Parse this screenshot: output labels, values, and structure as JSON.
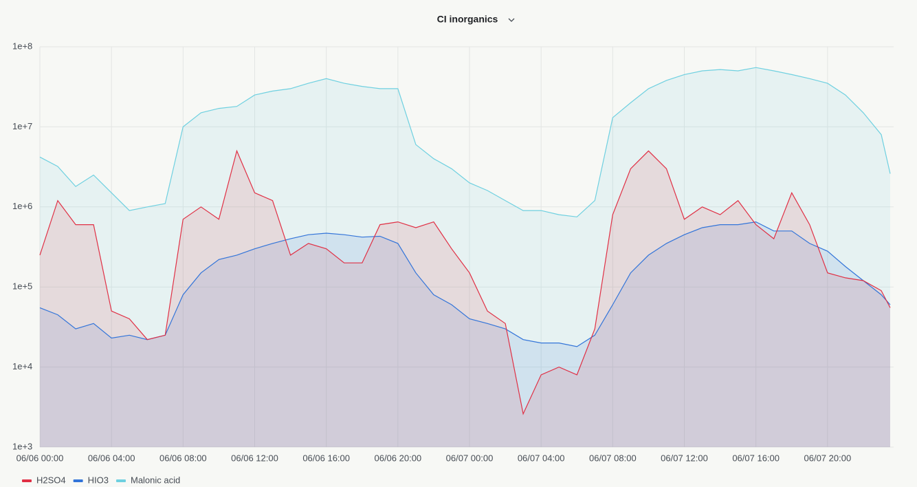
{
  "chart_data": {
    "type": "area",
    "title": "CI inorganics",
    "x": [
      0,
      1,
      2,
      3,
      4,
      5,
      6,
      7,
      8,
      9,
      10,
      11,
      12,
      13,
      14,
      15,
      16,
      17,
      18,
      19,
      20,
      21,
      22,
      23,
      24,
      25,
      26,
      27,
      28,
      29,
      30,
      31,
      32,
      33,
      34,
      35,
      36,
      37,
      38,
      39,
      40,
      41,
      42,
      43,
      44,
      45,
      46,
      47,
      47.5
    ],
    "xlim": [
      0,
      47.5
    ],
    "xticks": [
      {
        "value": 0,
        "label": "06/06 00:00"
      },
      {
        "value": 4,
        "label": "06/06 04:00"
      },
      {
        "value": 8,
        "label": "06/06 08:00"
      },
      {
        "value": 12,
        "label": "06/06 12:00"
      },
      {
        "value": 16,
        "label": "06/06 16:00"
      },
      {
        "value": 20,
        "label": "06/06 20:00"
      },
      {
        "value": 24,
        "label": "06/07 00:00"
      },
      {
        "value": 28,
        "label": "06/07 04:00"
      },
      {
        "value": 32,
        "label": "06/07 08:00"
      },
      {
        "value": 36,
        "label": "06/07 12:00"
      },
      {
        "value": 40,
        "label": "06/07 16:00"
      },
      {
        "value": 44,
        "label": "06/07 20:00"
      }
    ],
    "ylim": [
      1000,
      100000000
    ],
    "yticks": [
      {
        "value": 1000,
        "label": "1e+3"
      },
      {
        "value": 10000,
        "label": "1e+4"
      },
      {
        "value": 100000,
        "label": "1e+5"
      },
      {
        "value": 1000000,
        "label": "1e+6"
      },
      {
        "value": 10000000,
        "label": "1e+7"
      },
      {
        "value": 100000000,
        "label": "1e+8"
      }
    ],
    "log_scale": true,
    "grid": true,
    "legend_position": "bottom-left",
    "series": [
      {
        "name": "H2SO4",
        "color": "#e02f44",
        "values": [
          250000,
          1200000,
          600000,
          600000,
          50000,
          40000,
          22000,
          25000,
          700000,
          1000000,
          700000,
          5000000,
          1500000,
          1200000,
          250000,
          350000,
          300000,
          200000,
          200000,
          600000,
          650000,
          550000,
          650000,
          300000,
          150000,
          50000,
          35000,
          2600,
          8000,
          10000,
          8000,
          30000,
          800000,
          3000000,
          5000000,
          3000000,
          700000,
          1000000,
          800000,
          1200000,
          600000,
          400000,
          1500000,
          600000,
          150000,
          130000,
          120000,
          90000,
          55000
        ]
      },
      {
        "name": "HIO3",
        "color": "#3274d9",
        "values": [
          55000,
          45000,
          30000,
          35000,
          23000,
          25000,
          22000,
          25000,
          80000,
          150000,
          220000,
          250000,
          300000,
          350000,
          400000,
          450000,
          470000,
          450000,
          420000,
          430000,
          350000,
          150000,
          80000,
          60000,
          40000,
          35000,
          30000,
          22000,
          20000,
          20000,
          18000,
          25000,
          60000,
          150000,
          250000,
          350000,
          450000,
          550000,
          600000,
          600000,
          650000,
          500000,
          500000,
          350000,
          280000,
          180000,
          120000,
          80000,
          60000
        ]
      },
      {
        "name": "Malonic acid",
        "color": "#6ed0e0",
        "values": [
          4200000,
          3200000,
          1800000,
          2500000,
          1500000,
          900000,
          1000000,
          1100000,
          10000000,
          15000000,
          17000000,
          18000000,
          25000000,
          28000000,
          30000000,
          35000000,
          40000000,
          35000000,
          32000000,
          30000000,
          30000000,
          6000000,
          4000000,
          3000000,
          2000000,
          1600000,
          1200000,
          900000,
          900000,
          800000,
          750000,
          1200000,
          13000000,
          20000000,
          30000000,
          38000000,
          45000000,
          50000000,
          52000000,
          50000000,
          55000000,
          50000000,
          45000000,
          40000000,
          35000000,
          25000000,
          15000000,
          8000000,
          2600000
        ]
      }
    ]
  }
}
